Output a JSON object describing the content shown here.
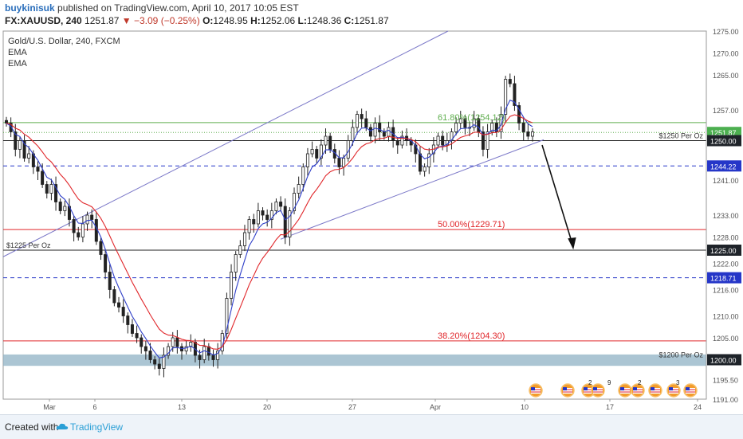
{
  "header": {
    "user": "buykinisuk",
    "published_text": "published on TradingView.com, April 10, 2017 10:05 EST",
    "symbol": "FX:XAUUSD, 240",
    "last": "1251.87",
    "change": "▼ −3.09 (−0.25%)",
    "o_label": "O:",
    "o_value": "1248.95",
    "h_label": "H:",
    "h_value": "1252.06",
    "l_label": "L:",
    "l_value": "1248.36",
    "c_label": "C:",
    "c_value": "1251.87"
  },
  "legend": {
    "title": "Gold/U.S. Dollar, 240, FXCM",
    "ema1": "EMA",
    "ema2": "EMA"
  },
  "footer": {
    "created_with": "Created with",
    "brand": "TradingView"
  },
  "colors": {
    "candle_up": "#222222",
    "candle_down": "#222222",
    "ema_fast": "#2f3fc8",
    "ema_slow": "#e0262a",
    "channel": "#7b78c8",
    "fib_green": "#5fae4e",
    "fib_red": "#e0262a",
    "dashed_blue": "#2536c8",
    "support_band": "#8fb2c4"
  },
  "chart_data": {
    "type": "candlestick",
    "ylim": [
      1191,
      1275
    ],
    "y_tick_labels": [
      "1275.00",
      "1270.00",
      "1265.00",
      "1257.00",
      "1250.00",
      "1244.22",
      "1241.00",
      "1233.00",
      "1228.00",
      "1225.00",
      "1222.00",
      "1218.71",
      "1216.00",
      "1210.00",
      "1205.00",
      "1200.00",
      "1195.50",
      "1191.00"
    ],
    "x_tick_labels": [
      "Mar",
      "6",
      "13",
      "20",
      "27",
      "Apr",
      "10",
      "17",
      "24"
    ],
    "price_badges": [
      {
        "label": "1251.87",
        "style": "green"
      },
      {
        "label": "1250.00",
        "style": "dark"
      },
      {
        "label": "1244.22",
        "style": "blue"
      },
      {
        "label": "1225.00",
        "style": "dark"
      },
      {
        "label": "1218.71",
        "style": "blue"
      },
      {
        "label": "1200.00",
        "style": "dark"
      }
    ],
    "annotations": [
      {
        "text": "61.80%(1254.12)",
        "price": 1254.12,
        "color": "green"
      },
      {
        "text": "50.00%(1229.71)",
        "price": 1229.71,
        "color": "red"
      },
      {
        "text": "38.20%(1204.30)",
        "price": 1204.3,
        "color": "red"
      },
      {
        "text": "$1250 Per Oz",
        "price": 1250
      },
      {
        "text": "$1225 Per Oz",
        "price": 1225
      },
      {
        "text": "$1200 Per Oz",
        "price": 1200
      }
    ],
    "events": [
      "2",
      "9",
      "2",
      "3"
    ],
    "close_series": [
      1254,
      1252,
      1248,
      1250,
      1246,
      1247,
      1244,
      1243,
      1240,
      1238,
      1240,
      1236,
      1234,
      1235,
      1232,
      1229,
      1228,
      1231,
      1233,
      1232,
      1227,
      1224,
      1220,
      1216,
      1213,
      1212,
      1210,
      1208,
      1206,
      1205,
      1203,
      1202,
      1200,
      1199,
      1198,
      1201,
      1203,
      1205,
      1203,
      1202,
      1203,
      1204,
      1201,
      1200,
      1203,
      1201,
      1200,
      1202,
      1206,
      1214,
      1220,
      1224,
      1226,
      1229,
      1232,
      1231,
      1234,
      1233,
      1232,
      1234,
      1236,
      1235,
      1228,
      1234,
      1238,
      1240,
      1244,
      1247,
      1248,
      1246,
      1249,
      1251,
      1248,
      1246,
      1244,
      1246,
      1250,
      1253,
      1256,
      1255,
      1253,
      1251,
      1254,
      1252,
      1251,
      1253,
      1250,
      1249,
      1251,
      1250,
      1249,
      1247,
      1243,
      1244,
      1247,
      1249,
      1251,
      1249,
      1250,
      1252,
      1254,
      1255,
      1253,
      1253,
      1255,
      1252,
      1248,
      1252,
      1254,
      1252,
      1256,
      1264,
      1263,
      1258,
      1254,
      1252,
      1251,
      1252
    ]
  }
}
